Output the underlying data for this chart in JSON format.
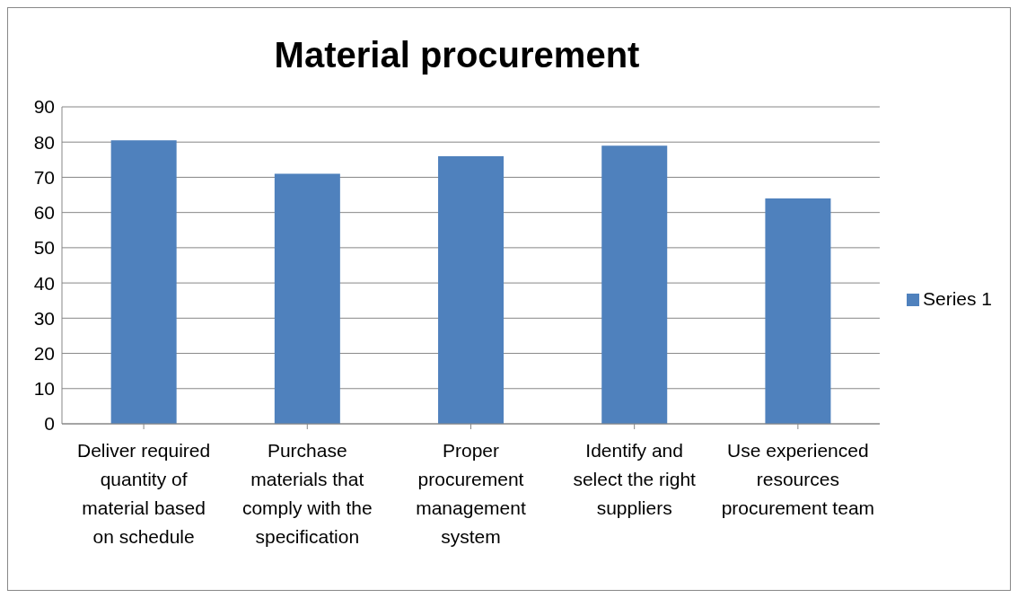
{
  "chart_data": {
    "type": "bar",
    "title": "Material procurement",
    "categories": [
      "Deliver required quantity of material based on schedule",
      "Purchase materials that comply with the specification",
      "Proper procurement management system",
      "Identify and select the right suppliers",
      "Use experienced resources procurement team"
    ],
    "series": [
      {
        "name": "Series 1",
        "color": "#4f81bd",
        "values": [
          80.5,
          71,
          76,
          79,
          64
        ]
      }
    ],
    "ylim": [
      0,
      90
    ],
    "yticks": [
      0,
      10,
      20,
      30,
      40,
      50,
      60,
      70,
      80,
      90
    ],
    "grid": "y",
    "legend": "right"
  }
}
